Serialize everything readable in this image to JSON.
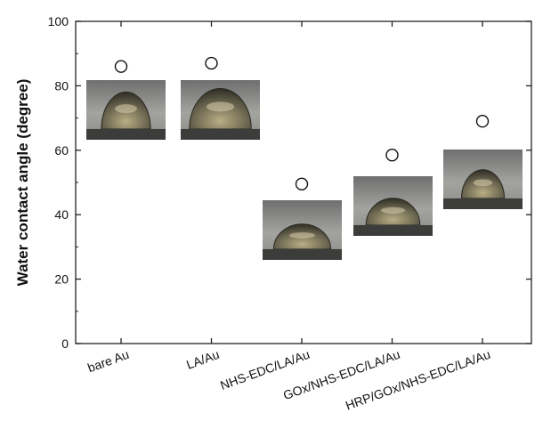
{
  "chart_data": {
    "type": "scatter",
    "title": "",
    "xlabel": "",
    "ylabel": "Water contact angle (degree)",
    "ylim": [
      0,
      100
    ],
    "yticks": [
      0,
      20,
      40,
      60,
      80,
      100
    ],
    "grid": false,
    "categories": [
      "bare Au",
      "LA/Au",
      "NHS-EDC/LA/Au",
      "GOx/NHS-EDC/LA/Au",
      "HRP/GOx/NHS-EDC/LA/Au"
    ],
    "values": [
      86,
      87,
      49.5,
      58.5,
      69
    ],
    "marker": "open-circle",
    "insets": "droplet photograph below each point"
  },
  "colors": {
    "axis": "#222222",
    "marker_stroke": "#111111",
    "photo_bg_top": "#7a7a7a",
    "photo_bg_bottom": "#9c9c9c",
    "droplet": "#5e5a44",
    "substrate": "#3a3a3a"
  }
}
